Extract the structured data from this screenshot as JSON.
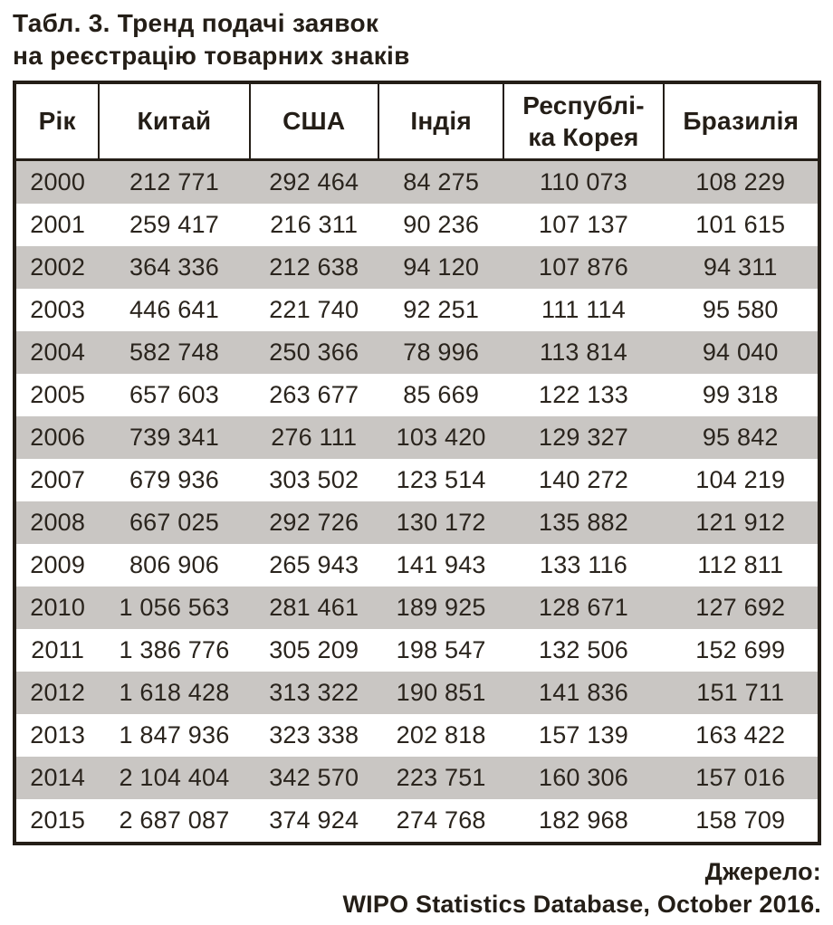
{
  "title": {
    "line1": "Табл. 3. Тренд подачі заявок",
    "line2": "на реєстрацію товарних знаків"
  },
  "table": {
    "headers": [
      "Рік",
      "Китай",
      "США",
      "Індія",
      "Республі-\nка Корея",
      "Бразилія"
    ],
    "rows": [
      [
        "2000",
        "212 771",
        "292 464",
        "84 275",
        "110 073",
        "108 229"
      ],
      [
        "2001",
        "259 417",
        "216 311",
        "90 236",
        "107 137",
        "101 615"
      ],
      [
        "2002",
        "364 336",
        "212 638",
        "94 120",
        "107 876",
        "94 311"
      ],
      [
        "2003",
        "446 641",
        "221 740",
        "92 251",
        "111 114",
        "95 580"
      ],
      [
        "2004",
        "582 748",
        "250 366",
        "78 996",
        "113 814",
        "94 040"
      ],
      [
        "2005",
        "657 603",
        "263 677",
        "85 669",
        "122 133",
        "99 318"
      ],
      [
        "2006",
        "739 341",
        "276 111",
        "103 420",
        "129 327",
        "95 842"
      ],
      [
        "2007",
        "679 936",
        "303 502",
        "123 514",
        "140 272",
        "104 219"
      ],
      [
        "2008",
        "667 025",
        "292 726",
        "130 172",
        "135 882",
        "121 912"
      ],
      [
        "2009",
        "806 906",
        "265 943",
        "141 943",
        "133 116",
        "112 811"
      ],
      [
        "2010",
        "1 056 563",
        "281 461",
        "189 925",
        "128 671",
        "127 692"
      ],
      [
        "2011",
        "1 386 776",
        "305 209",
        "198 547",
        "132 506",
        "152 699"
      ],
      [
        "2012",
        "1 618 428",
        "313 322",
        "190 851",
        "141 836",
        "151 711"
      ],
      [
        "2013",
        "1 847 936",
        "323 338",
        "202 818",
        "157 139",
        "163 422"
      ],
      [
        "2014",
        "2 104 404",
        "342 570",
        "223 751",
        "160 306",
        "157 016"
      ],
      [
        "2015",
        "2 687 087",
        "374 924",
        "274 768",
        "182 968",
        "158 709"
      ]
    ]
  },
  "source": {
    "line1": "Джерело:",
    "line2": "WIPO Statistics Database, October 2016."
  },
  "colors": {
    "ink": "#241e17",
    "stripe": "#c9c6c3",
    "row_white": "#ffffff"
  },
  "chart_data": {
    "type": "table",
    "title": "Табл. 3. Тренд подачі заявок на реєстрацію товарних знаків",
    "columns": [
      "Рік",
      "Китай",
      "США",
      "Індія",
      "Республіка Корея",
      "Бразилія"
    ],
    "rows": [
      [
        2000,
        212771,
        292464,
        84275,
        110073,
        108229
      ],
      [
        2001,
        259417,
        216311,
        90236,
        107137,
        101615
      ],
      [
        2002,
        364336,
        212638,
        94120,
        107876,
        94311
      ],
      [
        2003,
        446641,
        221740,
        92251,
        111114,
        95580
      ],
      [
        2004,
        582748,
        250366,
        78996,
        113814,
        94040
      ],
      [
        2005,
        657603,
        263677,
        85669,
        122133,
        99318
      ],
      [
        2006,
        739341,
        276111,
        103420,
        129327,
        95842
      ],
      [
        2007,
        679936,
        303502,
        123514,
        140272,
        104219
      ],
      [
        2008,
        667025,
        292726,
        130172,
        135882,
        121912
      ],
      [
        2009,
        806906,
        265943,
        141943,
        133116,
        112811
      ],
      [
        2010,
        1056563,
        281461,
        189925,
        128671,
        127692
      ],
      [
        2011,
        1386776,
        305209,
        198547,
        132506,
        152699
      ],
      [
        2012,
        1618428,
        313322,
        190851,
        141836,
        151711
      ],
      [
        2013,
        1847936,
        323338,
        202818,
        157139,
        163422
      ],
      [
        2014,
        2104404,
        342570,
        223751,
        160306,
        157016
      ],
      [
        2015,
        2687087,
        374924,
        274768,
        182968,
        158709
      ]
    ],
    "source": "WIPO Statistics Database, October 2016."
  }
}
